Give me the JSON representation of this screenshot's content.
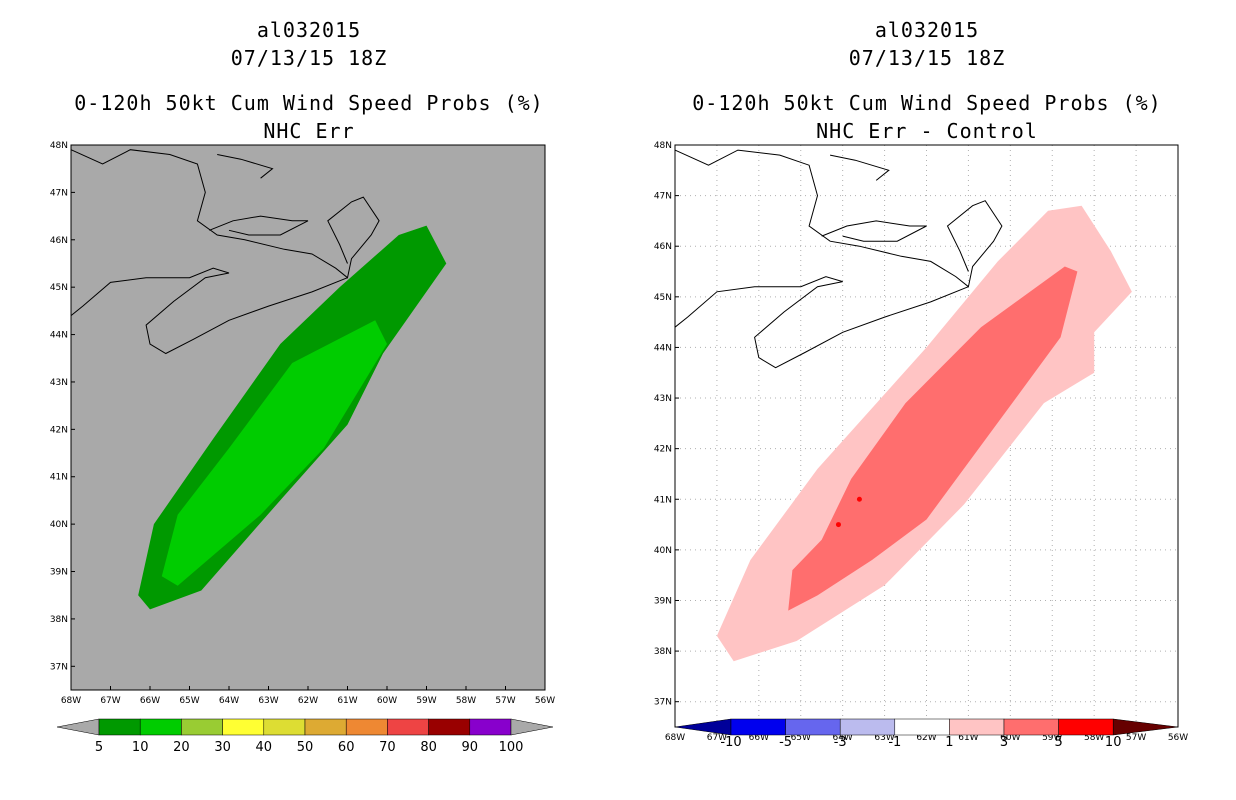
{
  "chart_data": [
    {
      "type": "contour-map",
      "storm_id": "al032015",
      "valid_time": "07/13/15 18Z",
      "title": "0-120h 50kt Cum Wind Speed Probs (%)",
      "subtitle": "NHC Err",
      "background_color": "#a9a9a9",
      "lon_ticks": [
        "68W",
        "67W",
        "66W",
        "65W",
        "64W",
        "63W",
        "62W",
        "61W",
        "60W",
        "59W",
        "58W",
        "57W",
        "56W"
      ],
      "lat_ticks": [
        "37N",
        "38N",
        "39N",
        "40N",
        "41N",
        "42N",
        "43N",
        "44N",
        "45N",
        "46N",
        "47N",
        "48N"
      ],
      "lon_range": [
        -68,
        -56
      ],
      "lat_range": [
        36.5,
        48
      ],
      "colorbar_labels": [
        "5",
        "10",
        "20",
        "30",
        "40",
        "50",
        "60",
        "70",
        "80",
        "90",
        "100"
      ],
      "colorbar_colors": [
        "#009900",
        "#00cc00",
        "#99cc33",
        "#ffff33",
        "#dddd33",
        "#ddaa33",
        "#ee8833",
        "#ee4444",
        "#990000",
        "#8800cc"
      ],
      "contours": [
        {
          "level": "5-10",
          "color": "#009900",
          "lonlat": [
            [
              -66.3,
              38.5
            ],
            [
              -65.9,
              40.0
            ],
            [
              -64.4,
              41.8
            ],
            [
              -62.7,
              43.8
            ],
            [
              -61.2,
              45.0
            ],
            [
              -59.7,
              46.1
            ],
            [
              -59.0,
              46.3
            ],
            [
              -58.5,
              45.5
            ],
            [
              -60.1,
              43.6
            ],
            [
              -61.0,
              42.1
            ],
            [
              -62.6,
              40.6
            ],
            [
              -64.7,
              38.6
            ],
            [
              -66.0,
              38.2
            ]
          ]
        },
        {
          "level": "10-20",
          "color": "#00cc00",
          "lonlat": [
            [
              -65.7,
              38.9
            ],
            [
              -65.3,
              40.2
            ],
            [
              -64.0,
              41.6
            ],
            [
              -62.4,
              43.4
            ],
            [
              -60.3,
              44.3
            ],
            [
              -60.0,
              43.8
            ],
            [
              -61.6,
              41.6
            ],
            [
              -63.2,
              40.2
            ],
            [
              -65.3,
              38.7
            ]
          ]
        }
      ]
    },
    {
      "type": "contour-map",
      "storm_id": "al032015",
      "valid_time": "07/13/15 18Z",
      "title": "0-120h 50kt Cum Wind Speed Probs (%)",
      "subtitle": "NHC Err - Control",
      "background_color": "#ffffff",
      "lon_ticks": [
        "68W",
        "67W",
        "66W",
        "65W",
        "64W",
        "63W",
        "62W",
        "61W",
        "60W",
        "59W",
        "58W",
        "57W",
        "56W"
      ],
      "lat_ticks": [
        "37N",
        "38N",
        "39N",
        "40N",
        "41N",
        "42N",
        "43N",
        "44N",
        "45N",
        "46N",
        "47N",
        "48N"
      ],
      "lon_range": [
        -68,
        -56
      ],
      "lat_range": [
        36.5,
        48
      ],
      "colorbar_labels": [
        "-10",
        "-5",
        "-3",
        "-1",
        "1",
        "3",
        "5",
        "10"
      ],
      "colorbar_colors": [
        "#000099",
        "#0000ee",
        "#6666ee",
        "#bbbbee",
        "#ffffff",
        "#ffc4c4",
        "#ff6e6e",
        "#ff0000",
        "#660000"
      ],
      "contours": [
        {
          "level": "1-3",
          "color": "#ffc4c4",
          "lonlat": [
            [
              -67.0,
              38.3
            ],
            [
              -66.2,
              39.8
            ],
            [
              -64.6,
              41.6
            ],
            [
              -62.0,
              44.0
            ],
            [
              -60.3,
              45.7
            ],
            [
              -59.1,
              46.7
            ],
            [
              -58.3,
              46.8
            ],
            [
              -57.6,
              45.9
            ],
            [
              -57.1,
              45.1
            ],
            [
              -58.0,
              44.3
            ],
            [
              -58.0,
              43.5
            ],
            [
              -59.2,
              42.9
            ],
            [
              -61.1,
              40.9
            ],
            [
              -63.0,
              39.3
            ],
            [
              -65.1,
              38.2
            ],
            [
              -66.6,
              37.8
            ]
          ]
        },
        {
          "level": "3-5",
          "color": "#ff6e6e",
          "lonlat": [
            [
              -65.3,
              38.8
            ],
            [
              -65.2,
              39.6
            ],
            [
              -64.5,
              40.2
            ],
            [
              -63.8,
              41.4
            ],
            [
              -62.5,
              42.9
            ],
            [
              -60.7,
              44.4
            ],
            [
              -58.7,
              45.6
            ],
            [
              -58.4,
              45.5
            ],
            [
              -58.8,
              44.2
            ],
            [
              -60.4,
              42.4
            ],
            [
              -62.0,
              40.6
            ],
            [
              -63.3,
              39.8
            ],
            [
              -64.6,
              39.1
            ]
          ]
        },
        {
          "level": "5-10",
          "color": "#ff0000",
          "lonlat": [
            [
              -64.1,
              40.5
            ],
            [
              -63.6,
              41.0
            ]
          ]
        }
      ]
    }
  ]
}
